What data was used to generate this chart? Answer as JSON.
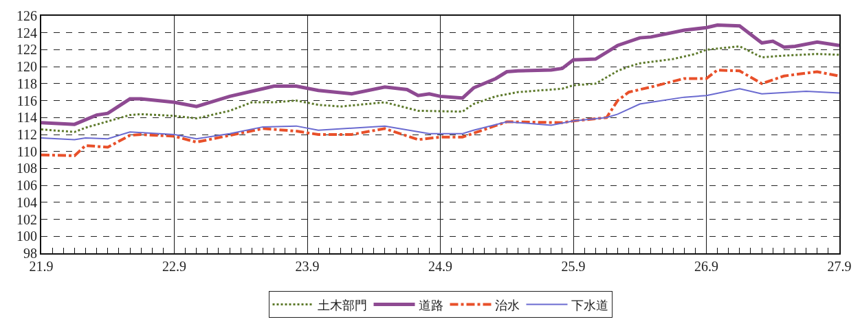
{
  "chart_data": {
    "type": "line",
    "xlim": [
      21.9,
      27.9
    ],
    "xticks": [
      21.9,
      22.9,
      23.9,
      24.9,
      25.9,
      26.9,
      27.9,
      {
        "value": 21.983,
        "label": null
      },
      {
        "value": 22.067,
        "label": null
      },
      {
        "value": 22.15,
        "label": null
      },
      {
        "value": 22.233,
        "label": null
      },
      {
        "value": 22.317,
        "label": null
      },
      {
        "value": 22.4,
        "label": null
      },
      {
        "value": 22.483,
        "label": null
      },
      {
        "value": 22.567,
        "label": null
      },
      {
        "value": 22.65,
        "label": null
      },
      {
        "value": 22.733,
        "label": null
      },
      {
        "value": 22.817,
        "label": null
      },
      {
        "value": 22.983,
        "label": null
      },
      {
        "value": 23.067,
        "label": null
      },
      {
        "value": 23.15,
        "label": null
      },
      {
        "value": 23.233,
        "label": null
      },
      {
        "value": 23.317,
        "label": null
      },
      {
        "value": 23.4,
        "label": null
      },
      {
        "value": 23.483,
        "label": null
      },
      {
        "value": 23.567,
        "label": null
      },
      {
        "value": 23.65,
        "label": null
      },
      {
        "value": 23.733,
        "label": null
      },
      {
        "value": 23.817,
        "label": null
      },
      {
        "value": 23.983,
        "label": null
      },
      {
        "value": 24.067,
        "label": null
      },
      {
        "value": 24.15,
        "label": null
      },
      {
        "value": 24.233,
        "label": null
      },
      {
        "value": 24.317,
        "label": null
      },
      {
        "value": 24.4,
        "label": null
      },
      {
        "value": 24.483,
        "label": null
      },
      {
        "value": 24.567,
        "label": null
      },
      {
        "value": 24.65,
        "label": null
      },
      {
        "value": 24.733,
        "label": null
      },
      {
        "value": 24.817,
        "label": null
      },
      {
        "value": 24.983,
        "label": null
      },
      {
        "value": 25.067,
        "label": null
      },
      {
        "value": 25.15,
        "label": null
      },
      {
        "value": 25.233,
        "label": null
      },
      {
        "value": 25.317,
        "label": null
      },
      {
        "value": 25.4,
        "label": null
      },
      {
        "value": 25.483,
        "label": null
      },
      {
        "value": 25.567,
        "label": null
      },
      {
        "value": 25.65,
        "label": null
      },
      {
        "value": 25.733,
        "label": null
      },
      {
        "value": 25.817,
        "label": null
      },
      {
        "value": 25.983,
        "label": null
      },
      {
        "value": 26.067,
        "label": null
      },
      {
        "value": 26.15,
        "label": null
      },
      {
        "value": 26.233,
        "label": null
      },
      {
        "value": 26.317,
        "label": null
      },
      {
        "value": 26.4,
        "label": null
      },
      {
        "value": 26.483,
        "label": null
      },
      {
        "value": 26.567,
        "label": null
      },
      {
        "value": 26.65,
        "label": null
      },
      {
        "value": 26.733,
        "label": null
      },
      {
        "value": 26.817,
        "label": null
      },
      {
        "value": 26.983,
        "label": null
      },
      {
        "value": 27.067,
        "label": null
      },
      {
        "value": 27.15,
        "label": null
      },
      {
        "value": 27.233,
        "label": null
      },
      {
        "value": 27.317,
        "label": null
      },
      {
        "value": 27.4,
        "label": null
      },
      {
        "value": 27.483,
        "label": null
      },
      {
        "value": 27.567,
        "label": null
      },
      {
        "value": 27.65,
        "label": null
      },
      {
        "value": 27.733,
        "label": null
      },
      {
        "value": 27.817,
        "label": null
      }
    ],
    "ylim": [
      98,
      126
    ],
    "yticks": [
      98,
      100,
      102,
      104,
      106,
      108,
      110,
      112,
      114,
      116,
      118,
      120,
      122,
      124,
      126
    ],
    "grid": true,
    "legend": "bottom",
    "series": [
      {
        "name": "土木部門",
        "color": "#5e7a2c",
        "line_style": "dotted",
        "x": [
          21.9,
          22.15,
          22.233,
          22.567,
          22.65,
          22.9,
          23.067,
          23.317,
          23.483,
          23.65,
          23.817,
          23.983,
          24.15,
          24.483,
          24.733,
          25.067,
          25.15,
          25.317,
          25.483,
          25.817,
          25.9,
          26.067,
          26.233,
          26.317,
          26.4,
          26.65,
          26.817,
          26.9,
          27.15,
          27.317,
          27.483,
          27.733,
          27.9
        ],
        "values": [
          112.6,
          112.3,
          112.8,
          114.3,
          114.4,
          114.2,
          113.9,
          114.8,
          115.8,
          115.8,
          116.0,
          115.5,
          115.3,
          115.8,
          114.8,
          114.7,
          115.6,
          116.5,
          117.0,
          117.4,
          117.8,
          118.0,
          119.5,
          120.0,
          120.4,
          120.9,
          121.5,
          122.0,
          122.4,
          121.1,
          121.3,
          121.5,
          121.4
        ]
      },
      {
        "name": "道路",
        "color": "#8e4a92",
        "line_style": "solid",
        "x": [
          21.9,
          22.15,
          22.317,
          22.4,
          22.567,
          22.65,
          22.9,
          23.067,
          23.317,
          23.567,
          23.65,
          23.817,
          23.983,
          24.233,
          24.483,
          24.65,
          24.733,
          24.817,
          24.9,
          25.067,
          25.15,
          25.317,
          25.4,
          25.483,
          25.733,
          25.817,
          25.9,
          26.067,
          26.233,
          26.4,
          26.483,
          26.733,
          26.9,
          26.983,
          27.15,
          27.317,
          27.4,
          27.483,
          27.567,
          27.733,
          27.9
        ],
        "values": [
          113.4,
          113.2,
          114.3,
          114.5,
          116.2,
          116.2,
          115.8,
          115.3,
          116.5,
          117.4,
          117.7,
          117.7,
          117.2,
          116.8,
          117.6,
          117.3,
          116.6,
          116.8,
          116.5,
          116.3,
          117.5,
          118.6,
          119.4,
          119.5,
          119.6,
          119.8,
          120.8,
          120.9,
          122.5,
          123.4,
          123.5,
          124.3,
          124.6,
          124.9,
          124.8,
          122.8,
          123.0,
          122.3,
          122.4,
          122.9,
          122.5
        ]
      },
      {
        "name": "治水",
        "color": "#e8502a",
        "line_style": "dashdot",
        "x": [
          21.9,
          22.15,
          22.233,
          22.4,
          22.567,
          22.65,
          22.9,
          23.067,
          23.317,
          23.567,
          23.817,
          23.983,
          24.233,
          24.483,
          24.733,
          24.9,
          25.067,
          25.4,
          25.817,
          25.9,
          26.15,
          26.233,
          26.317,
          26.483,
          26.733,
          26.9,
          26.983,
          27.15,
          27.317,
          27.483,
          27.733,
          27.9
        ],
        "values": [
          109.6,
          109.5,
          110.7,
          110.5,
          111.9,
          112.0,
          111.8,
          111.1,
          111.9,
          112.7,
          112.4,
          112.0,
          112.0,
          112.7,
          111.4,
          111.7,
          111.7,
          113.5,
          113.4,
          113.6,
          114.0,
          116.0,
          117.0,
          117.6,
          118.6,
          118.6,
          119.6,
          119.5,
          118.0,
          118.9,
          119.4,
          118.9
        ]
      },
      {
        "name": "下水道",
        "color": "#6a6ad0",
        "line_style": "solid",
        "x": [
          21.9,
          22.15,
          22.233,
          22.4,
          22.567,
          22.9,
          23.067,
          23.317,
          23.567,
          23.817,
          23.983,
          24.483,
          24.817,
          25.067,
          25.15,
          25.4,
          25.733,
          25.9,
          26.15,
          26.233,
          26.4,
          26.483,
          26.733,
          26.9,
          27.15,
          27.317,
          27.65,
          27.9
        ],
        "values": [
          111.6,
          111.4,
          111.6,
          111.5,
          112.3,
          112.0,
          111.5,
          112.1,
          112.9,
          113.0,
          112.5,
          113.0,
          112.1,
          112.1,
          112.5,
          113.5,
          113.1,
          113.6,
          114.0,
          114.4,
          115.6,
          115.8,
          116.4,
          116.6,
          117.4,
          116.8,
          117.1,
          116.9
        ]
      }
    ]
  }
}
